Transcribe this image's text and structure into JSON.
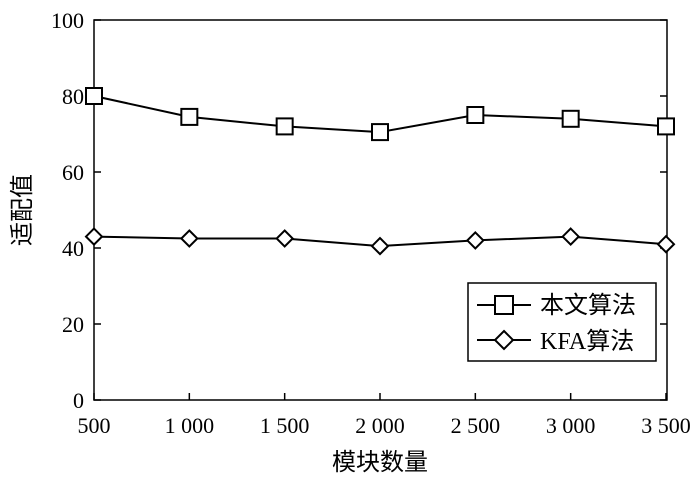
{
  "chart_data": {
    "type": "line",
    "title": "",
    "xlabel": "模块数量",
    "ylabel": "适配值",
    "categories": [
      "500",
      "1 000",
      "1 500",
      "2 000",
      "2 500",
      "3 000",
      "3 500"
    ],
    "ylim": [
      0,
      100
    ],
    "yticks": [
      "0",
      "20",
      "40",
      "60",
      "80",
      "100"
    ],
    "grid": false,
    "legend_position": "center-right",
    "series": [
      {
        "name": "本文算法",
        "marker": "square",
        "color": "#000000",
        "values": [
          80,
          74.5,
          72,
          70.5,
          75,
          74,
          72
        ]
      },
      {
        "name": "KFA算法",
        "marker": "diamond",
        "color": "#000000",
        "values": [
          43,
          42.5,
          42.5,
          40.5,
          42,
          43,
          41
        ]
      }
    ]
  }
}
